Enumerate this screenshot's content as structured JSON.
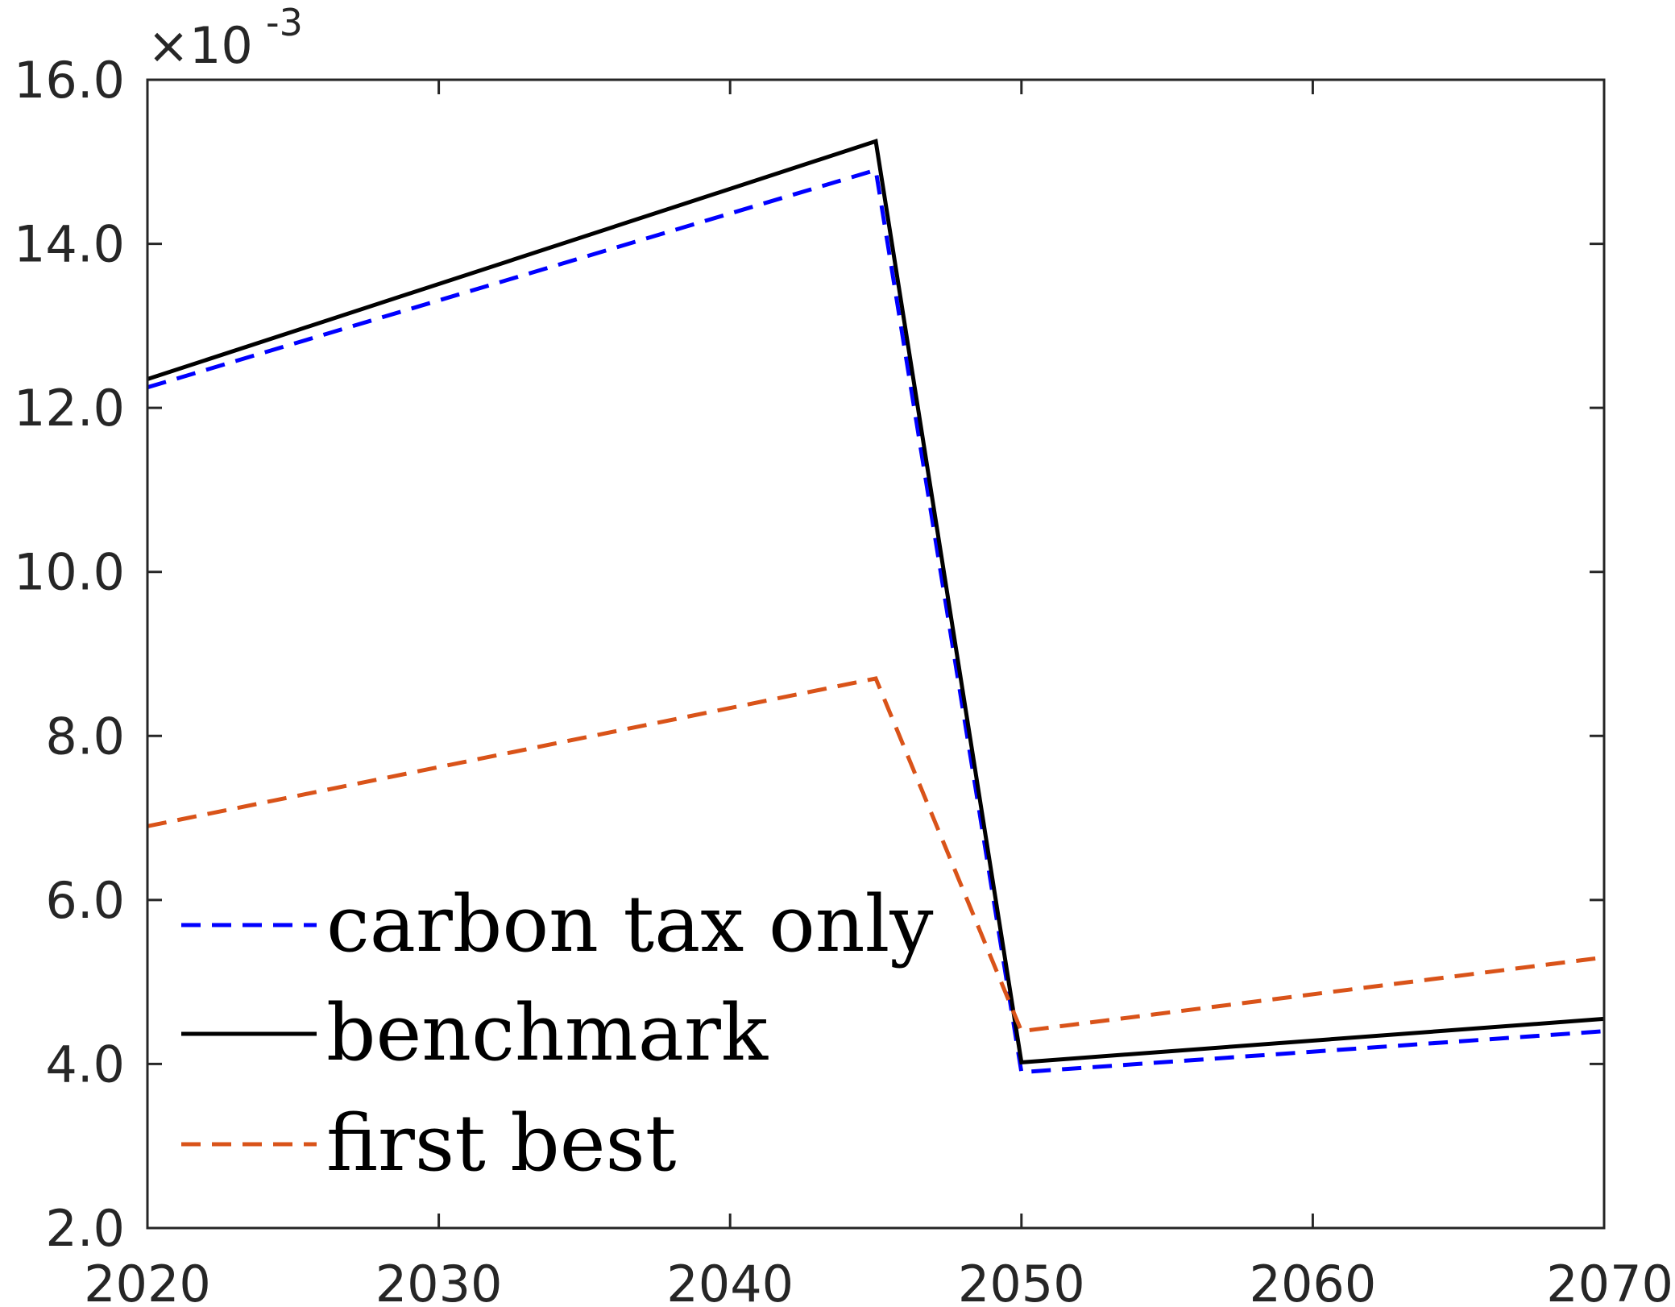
{
  "chart_data": {
    "type": "line",
    "title": "",
    "xlabel": "",
    "ylabel": "",
    "xlim": [
      2020,
      2070
    ],
    "ylim": [
      2.0,
      16.0
    ],
    "x_ticks": [
      2020,
      2030,
      2040,
      2050,
      2060,
      2070
    ],
    "x_tick_labels": [
      "2020",
      "2030",
      "2040",
      "2050",
      "2060",
      "2070"
    ],
    "y_ticks": [
      2.0,
      4.0,
      6.0,
      8.0,
      10.0,
      12.0,
      14.0,
      16.0
    ],
    "y_tick_labels": [
      "2.0",
      "4.0",
      "6.0",
      "8.0",
      "10.0",
      "12.0",
      "14.0",
      "16.0"
    ],
    "y_exponent_label": {
      "base": "×10",
      "power": "-3"
    },
    "grid": false,
    "legend_position": "bottom-left",
    "x": [
      2020,
      2045,
      2050,
      2070
    ],
    "series": [
      {
        "name": "carbon tax only",
        "values": [
          12.25,
          14.9,
          3.9,
          4.4
        ],
        "color": "#0000ff",
        "style": "dashed"
      },
      {
        "name": "benchmark",
        "values": [
          12.35,
          15.25,
          4.02,
          4.55
        ],
        "color": "#000000",
        "style": "solid"
      },
      {
        "name": "first best",
        "values": [
          6.9,
          8.7,
          4.4,
          5.3
        ],
        "color": "#d95319",
        "style": "dashed"
      }
    ]
  }
}
